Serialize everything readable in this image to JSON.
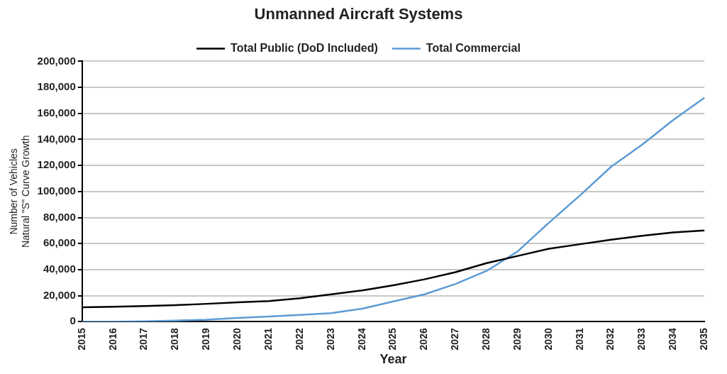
{
  "chart_data": {
    "type": "line",
    "title": "Unmanned Aircraft Systems",
    "xlabel": "Year",
    "ylabel": "Number of Vehicles\nNatural \"S\" Curve Growth",
    "categories": [
      "2015",
      "2016",
      "2017",
      "2018",
      "2019",
      "2020",
      "2021",
      "2022",
      "2023",
      "2024",
      "2025",
      "2026",
      "2027",
      "2028",
      "2029",
      "2030",
      "2031",
      "2032",
      "2033",
      "2034",
      "2035"
    ],
    "series": [
      {
        "name": "Total Public (DoD Included)",
        "color": "#000000",
        "values": [
          11000,
          11500,
          12000,
          12700,
          13700,
          14800,
          15800,
          18000,
          21000,
          24000,
          28000,
          32500,
          38000,
          45000,
          50500,
          56000,
          59500,
          63000,
          66000,
          68500,
          70000
        ]
      },
      {
        "name": "Total Commercial",
        "color": "#5b9bd5",
        "values": [
          0,
          0,
          300,
          800,
          1500,
          2800,
          4000,
          5200,
          6500,
          10000,
          15500,
          21000,
          29000,
          39000,
          54000,
          76000,
          97000,
          119000,
          136000,
          155000,
          172000
        ]
      }
    ],
    "ylim": [
      0,
      200000
    ],
    "yticks": [
      0,
      {
        "value": 20000,
        "label": "20,000"
      },
      {
        "value": 40000,
        "label": "40,000"
      },
      {
        "value": 60000,
        "label": "60,000"
      },
      {
        "value": 80000,
        "label": "80,000"
      },
      {
        "value": 100000,
        "label": "100,000"
      },
      {
        "value": 120000,
        "label": "120,000"
      },
      {
        "value": 140000,
        "label": "140,000"
      },
      {
        "value": 160000,
        "label": "160,000"
      },
      {
        "value": 180000,
        "label": "180,000"
      },
      {
        "value": 200000,
        "label": "200,000"
      }
    ],
    "grid": "y",
    "legend": "top",
    "marker": "none",
    "line_style": "solid"
  }
}
